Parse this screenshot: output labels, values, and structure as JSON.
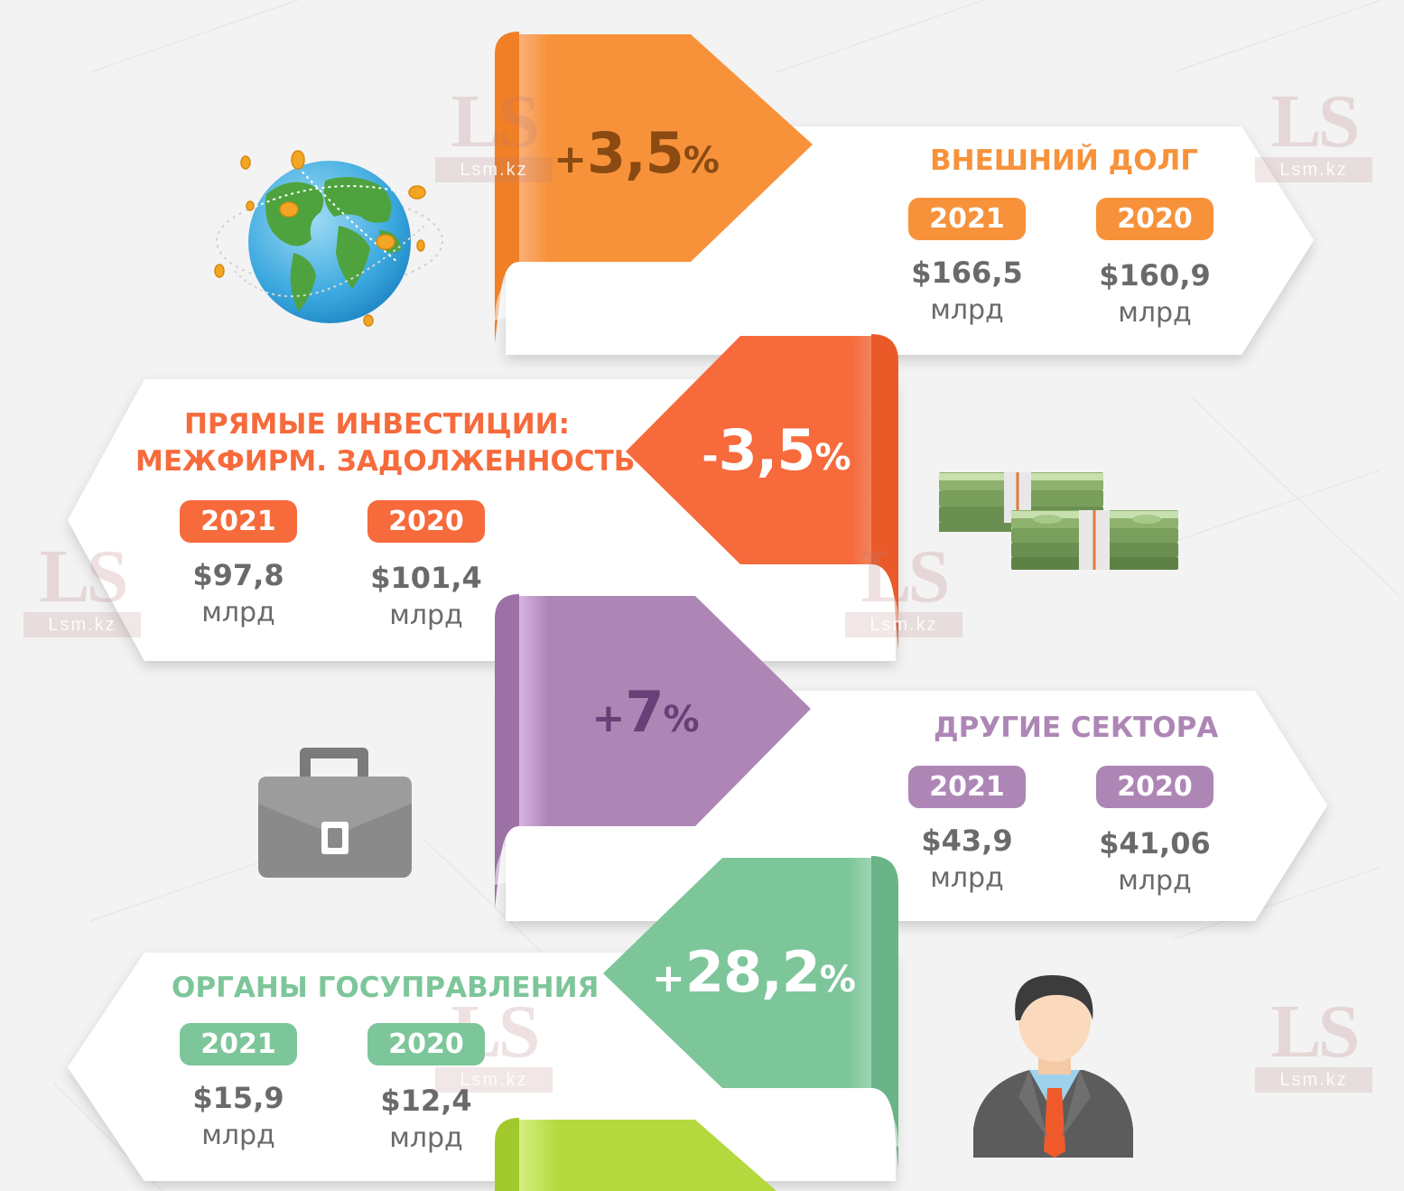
{
  "colors": {
    "orange": "#f7923a",
    "red_orange": "#f66a3c",
    "purple": "#ad86b6",
    "green": "#7dc69a",
    "lime": "#b3d93f",
    "value_gray": "#6a6a6a"
  },
  "watermark": {
    "logo": "LS",
    "site": "Lsm.kz"
  },
  "sections": [
    {
      "change_sign": "+",
      "change_value": "3,5",
      "change_unit": "%",
      "title": "ВНЕШНИЙ ДОЛГ",
      "year_a": "2021",
      "amount_a": "$166,5",
      "unit_a": "млрд",
      "year_b": "2020",
      "amount_b": "$160,9",
      "unit_b": "млрд",
      "icon": "globe-icon"
    },
    {
      "change_sign": "-",
      "change_value": "3,5",
      "change_unit": "%",
      "title_line1": "ПРЯМЫЕ ИНВЕСТИЦИИ:",
      "title_line2": "МЕЖФИРМ. ЗАДОЛЖЕННОСТЬ",
      "year_a": "2021",
      "amount_a": "$97,8",
      "unit_a": "млрд",
      "year_b": "2020",
      "amount_b": "$101,4",
      "unit_b": "млрд",
      "icon": "money-stacks-icon"
    },
    {
      "change_sign": "+",
      "change_value": "7",
      "change_unit": "%",
      "title": "ДРУГИЕ СЕКТОРА",
      "year_a": "2021",
      "amount_a": "$43,9",
      "unit_a": "млрд",
      "year_b": "2020",
      "amount_b": "$41,06",
      "unit_b": "млрд",
      "icon": "briefcase-icon"
    },
    {
      "change_sign": "+",
      "change_value": "28,2",
      "change_unit": "%",
      "title": "ОРГАНЫ ГОСУПРАВЛЕНИЯ",
      "year_a": "2021",
      "amount_a": "$15,9",
      "unit_a": "млрд",
      "year_b": "2020",
      "amount_b": "$12,4",
      "unit_b": "млрд",
      "icon": "businessman-icon"
    }
  ]
}
